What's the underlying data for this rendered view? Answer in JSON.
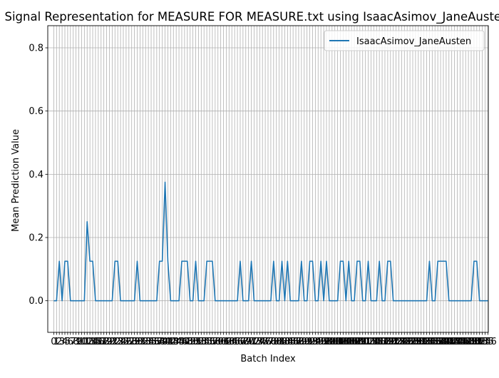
{
  "chart_data": {
    "type": "line",
    "title": "Signal Representation for MEASURE FOR MEASURE.txt using IsaacAsimov_JaneAusten",
    "xlabel": "Batch Index",
    "ylabel": "Mean Prediction Value",
    "xlim": [
      -2.15,
      156.15
    ],
    "ylim": [
      -0.1,
      0.87
    ],
    "yticks": [
      0.0,
      0.2,
      0.4,
      0.6,
      0.8
    ],
    "ytick_labels": [
      "0.0",
      "0.2",
      "0.4",
      "0.6",
      "0.8"
    ],
    "grid": true,
    "legend_position": "top-right",
    "series": [
      {
        "name": "IsaacAsimov_JaneAusten",
        "color": "#1f77b4",
        "values": [
          0,
          0,
          0.125,
          0,
          0.125,
          0.125,
          0,
          0,
          0,
          0,
          0,
          0,
          0.25,
          0.125,
          0.125,
          0,
          0,
          0,
          0,
          0,
          0,
          0,
          0.125,
          0.125,
          0,
          0,
          0,
          0,
          0,
          0,
          0.125,
          0,
          0,
          0,
          0,
          0,
          0,
          0,
          0.125,
          0.125,
          0.375,
          0.125,
          0,
          0,
          0,
          0,
          0.125,
          0.125,
          0.125,
          0,
          0,
          0.125,
          0,
          0,
          0,
          0.125,
          0.125,
          0.125,
          0,
          0,
          0,
          0,
          0,
          0,
          0,
          0,
          0,
          0.125,
          0,
          0,
          0,
          0.125,
          0,
          0,
          0,
          0,
          0,
          0,
          0,
          0.125,
          0,
          0,
          0.125,
          0,
          0.125,
          0,
          0,
          0,
          0,
          0.125,
          0,
          0,
          0.125,
          0.125,
          0,
          0,
          0.125,
          0,
          0.125,
          0,
          0,
          0,
          0,
          0.125,
          0.125,
          0,
          0.125,
          0,
          0,
          0.125,
          0.125,
          0,
          0,
          0.125,
          0,
          0,
          0,
          0.125,
          0,
          0,
          0.125,
          0.125,
          0,
          0,
          0,
          0,
          0,
          0,
          0,
          0,
          0,
          0,
          0,
          0,
          0,
          0.125,
          0,
          0,
          0.125,
          0.125,
          0.125,
          0.125,
          0,
          0,
          0,
          0,
          0,
          0,
          0,
          0,
          0,
          0.125,
          0.125,
          0,
          0,
          0,
          0
        ]
      }
    ]
  }
}
